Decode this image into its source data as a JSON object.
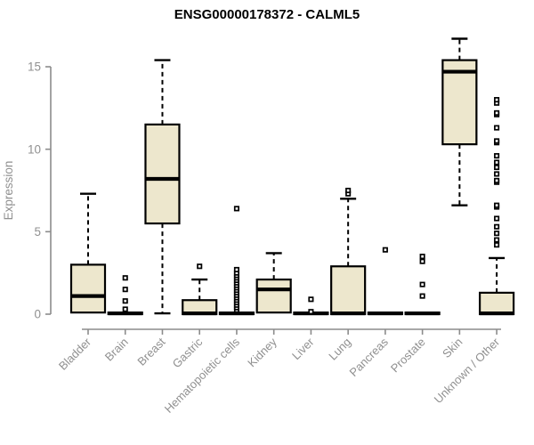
{
  "title": "ENSG00000178372 - CALML5",
  "chart_data": {
    "type": "boxplot",
    "title": "ENSG00000178372 - CALML5",
    "ylabel": "Expression",
    "xlabel": "",
    "yticks": [
      0,
      5,
      10,
      15
    ],
    "ylim": [
      0,
      17
    ],
    "grid": "off",
    "legend": "none",
    "categories": [
      "Bladder",
      "Brain",
      "Breast",
      "Gastric",
      "Hematopoietic cells",
      "Kidney",
      "Liver",
      "Lung",
      "Pancreas",
      "Prostate",
      "Skin",
      "Unknown / Other"
    ],
    "series": [
      {
        "name": "Bladder",
        "whisker_low": 0.1,
        "q1": 0.1,
        "median": 1.1,
        "q3": 3.0,
        "whisker_high": 7.3,
        "outliers": []
      },
      {
        "name": "Brain",
        "whisker_low": 0,
        "q1": 0,
        "median": 0.05,
        "q3": 0.1,
        "whisker_high": 0.1,
        "outliers": [
          0.3,
          0.8,
          1.5,
          2.2
        ]
      },
      {
        "name": "Breast",
        "whisker_low": 0.05,
        "q1": 5.5,
        "median": 8.2,
        "q3": 11.5,
        "whisker_high": 15.4,
        "outliers": []
      },
      {
        "name": "Gastric",
        "whisker_low": 0,
        "q1": 0,
        "median": 0.05,
        "q3": 0.85,
        "whisker_high": 2.1,
        "outliers": [
          2.9
        ]
      },
      {
        "name": "Hematopoietic cells",
        "whisker_low": 0,
        "q1": 0,
        "median": 0.05,
        "q3": 0.1,
        "whisker_high": 0.1,
        "outliers": [
          0.25,
          0.4,
          0.55,
          0.7,
          0.85,
          1.0,
          1.15,
          1.3,
          1.45,
          1.6,
          1.75,
          1.9,
          2.05,
          2.2,
          2.35,
          2.5,
          2.7,
          6.4
        ]
      },
      {
        "name": "Kidney",
        "whisker_low": 0.1,
        "q1": 0.1,
        "median": 1.5,
        "q3": 2.1,
        "whisker_high": 3.7,
        "outliers": []
      },
      {
        "name": "Liver",
        "whisker_low": 0,
        "q1": 0,
        "median": 0.05,
        "q3": 0.1,
        "whisker_high": 0.1,
        "outliers": [
          0.15,
          0.9
        ]
      },
      {
        "name": "Lung",
        "whisker_low": 0,
        "q1": 0,
        "median": 0.05,
        "q3": 2.9,
        "whisker_high": 7.0,
        "outliers": [
          7.3,
          7.5
        ]
      },
      {
        "name": "Pancreas",
        "whisker_low": 0,
        "q1": 0,
        "median": 0.05,
        "q3": 0.1,
        "whisker_high": 0.1,
        "outliers": [
          3.9
        ]
      },
      {
        "name": "Prostate",
        "whisker_low": 0,
        "q1": 0,
        "median": 0.05,
        "q3": 0.1,
        "whisker_high": 0.1,
        "outliers": [
          1.1,
          1.8,
          3.2,
          3.5
        ]
      },
      {
        "name": "Skin",
        "whisker_low": 6.6,
        "q1": 10.3,
        "median": 14.7,
        "q3": 15.4,
        "whisker_high": 16.7,
        "outliers": []
      },
      {
        "name": "Unknown / Other",
        "whisker_low": 0,
        "q1": 0,
        "median": 0.05,
        "q3": 1.3,
        "whisker_high": 3.4,
        "outliers": [
          4.2,
          4.5,
          4.9,
          5.3,
          5.8,
          6.5,
          6.6,
          8.0,
          8.1,
          8.5,
          8.9,
          9.2,
          9.6,
          10.4,
          10.5,
          11.3,
          12.1,
          12.2,
          12.8,
          13.0
        ]
      }
    ],
    "colors": {
      "box_fill": "#EDE7CD",
      "box_border": "#000000",
      "median": "#000000",
      "whisker": "#000000",
      "outlier_stroke": "#000000",
      "axis": "#8C8C8C",
      "tick_label": "#909090",
      "title": "#000000"
    }
  }
}
